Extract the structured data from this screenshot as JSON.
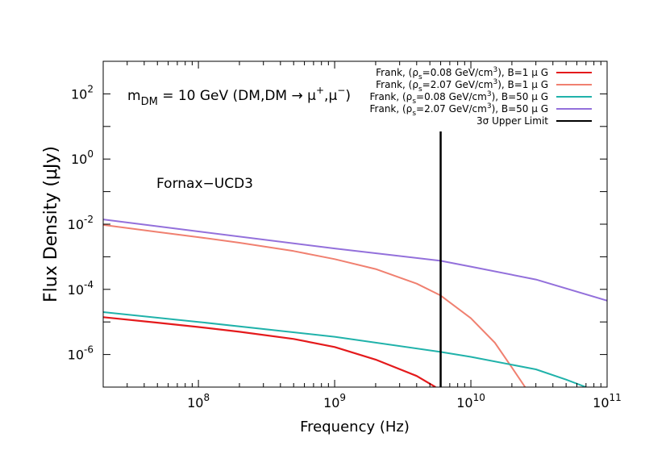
{
  "chart_data": {
    "type": "line",
    "xscale": "log",
    "yscale": "log",
    "xlim": [
      20000000,
      100000000000
    ],
    "ylim": [
      1e-07,
      1000
    ],
    "xlabel": "Frequency (Hz)",
    "ylabel": "Flux Density (μJy)",
    "xticks": [
      {
        "value": 100000000,
        "base": "10",
        "exp": "8"
      },
      {
        "value": 1000000000,
        "base": "10",
        "exp": "9"
      },
      {
        "value": 10000000000,
        "base": "10",
        "exp": "10"
      },
      {
        "value": 100000000000,
        "base": "10",
        "exp": "11"
      }
    ],
    "yticks": [
      {
        "value": 1e-06,
        "base": "10",
        "exp": "-6"
      },
      {
        "value": 0.0001,
        "base": "10",
        "exp": "-4"
      },
      {
        "value": 0.01,
        "base": "10",
        "exp": "-2"
      },
      {
        "value": 1,
        "base": "10",
        "exp": "0"
      },
      {
        "value": 100,
        "base": "10",
        "exp": "2"
      }
    ],
    "annotation_title": {
      "m": "m",
      "sub": "DM",
      "rest": " = 10 GeV (DM,DM → μ",
      "sup1": "+",
      "comma": ",μ",
      "sup2": "−",
      "close": ")"
    },
    "annotation_target": "Fornax−UCD3",
    "series": [
      {
        "name": "Frank, (ρs=0.08 GeV/cm3), B=1 μ G",
        "legend_parts": {
          "pre": "Frank, (ρ",
          "sub": "s",
          "mid": "=0.08 GeV/cm",
          "sup": "3",
          "post": "), B=1 μ G"
        },
        "color": "#e41a1c",
        "stroke_width": 2.2,
        "x": [
          20000000,
          50000000,
          100000000,
          200000000,
          500000000,
          1000000000,
          2000000000,
          4000000000,
          5500000000
        ],
        "y": [
          1.4e-05,
          9.5e-06,
          7e-06,
          5e-06,
          3e-06,
          1.7e-06,
          7e-07,
          2.2e-07,
          1e-07
        ]
      },
      {
        "name": "Frank, (ρs=2.07 GeV/cm3), B=1 μ G",
        "legend_parts": {
          "pre": "Frank, (ρ",
          "sub": "s",
          "mid": "=2.07 GeV/cm",
          "sup": "3",
          "post": "), B=1 μ G"
        },
        "color": "#f08070",
        "stroke_width": 2,
        "x": [
          20000000,
          50000000,
          100000000,
          200000000,
          500000000,
          1000000000,
          2000000000,
          4000000000,
          6000000000,
          10000000000,
          15000000000,
          20000000000,
          25000000000
        ],
        "y": [
          0.0095,
          0.0058,
          0.004,
          0.0027,
          0.0015,
          0.00085,
          0.00042,
          0.00015,
          6.5e-05,
          1.3e-05,
          2.3e-06,
          4e-07,
          1e-07
        ]
      },
      {
        "name": "Frank, (ρs=0.08 GeV/cm3), B=50 μ G",
        "legend_parts": {
          "pre": "Frank, (ρ",
          "sub": "s",
          "mid": "=0.08 GeV/cm",
          "sup": "3",
          "post": "), B=50 μ G"
        },
        "color": "#20b2aa",
        "stroke_width": 2,
        "x": [
          20000000,
          100000000,
          1000000000,
          6000000000,
          10000000000,
          30000000000,
          50000000000,
          70000000000
        ],
        "y": [
          2e-05,
          1e-05,
          3.5e-06,
          1.2e-06,
          8.5e-07,
          3.5e-07,
          1.7e-07,
          1e-07
        ]
      },
      {
        "name": "Frank, (ρs=2.07 GeV/cm3), B=50 μ G",
        "legend_parts": {
          "pre": "Frank, (ρ",
          "sub": "s",
          "mid": "=2.07 GeV/cm",
          "sup": "3",
          "post": "), B=50 μ G"
        },
        "color": "#9370db",
        "stroke_width": 2,
        "x": [
          20000000,
          100000000,
          1000000000,
          6000000000,
          10000000000,
          30000000000,
          100000000000
        ],
        "y": [
          0.014,
          0.006,
          0.0018,
          0.00075,
          0.0005,
          0.0002,
          4.5e-05
        ]
      }
    ],
    "upper_limit": {
      "name": "3σ Upper Limit",
      "color": "#000000",
      "x": 6000000000,
      "y_top": 7,
      "y_bottom": 1e-07
    }
  }
}
